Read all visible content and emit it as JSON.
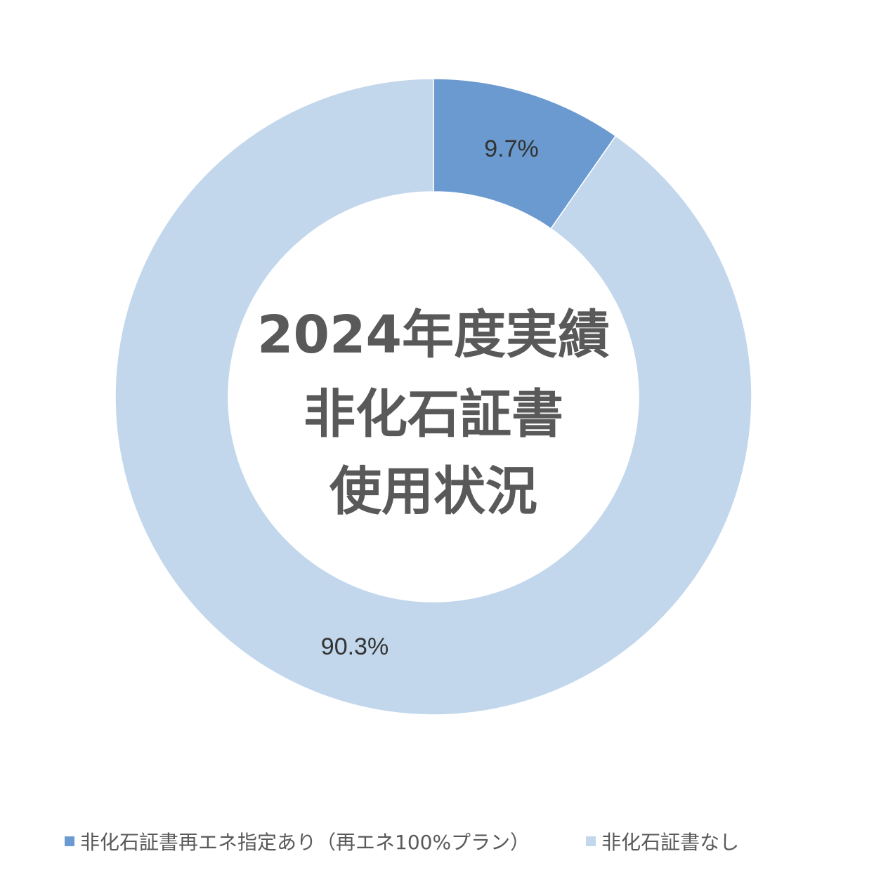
{
  "chart_data": {
    "type": "pie",
    "variant": "donut",
    "title_lines": [
      "2024年度実績",
      "非化石証書",
      "使用状況"
    ],
    "categories": [
      "非化石証書再エネ指定あり（再エネ100%プラン）",
      "非化石証書なし"
    ],
    "values": [
      9.7,
      90.3
    ],
    "data_labels": [
      "9.7%",
      "90.3%"
    ],
    "colors": [
      "#6a9ad0",
      "#c2d7ec"
    ],
    "legend_position": "bottom"
  }
}
